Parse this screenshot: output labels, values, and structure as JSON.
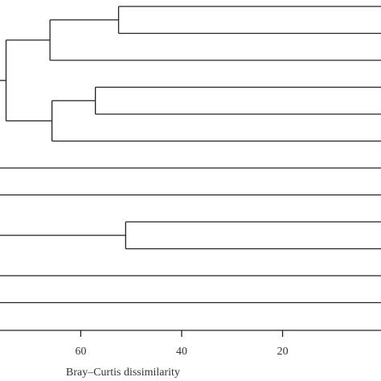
{
  "chart_data": {
    "type": "dendrogram",
    "x_label": "Bray–Curtis dissimilarity",
    "categories": [
      null,
      null,
      null,
      null,
      null,
      null,
      null,
      null,
      null,
      null,
      null,
      null
    ],
    "merges": [
      {
        "children": [
          0,
          1
        ],
        "height": 52.5
      },
      {
        "children": [
          12,
          2
        ],
        "height": 66.1
      },
      {
        "children": [
          3,
          4
        ],
        "height": 57.1
      },
      {
        "children": [
          14,
          5
        ],
        "height": 65.7
      },
      {
        "children": [
          13,
          15
        ],
        "height": 74.8
      },
      {
        "children": [
          8,
          9
        ],
        "height": 51.1
      }
    ],
    "xlim": [
      76,
      0.5
    ],
    "xticks": [
      60,
      40,
      20
    ],
    "color": "#222222"
  }
}
